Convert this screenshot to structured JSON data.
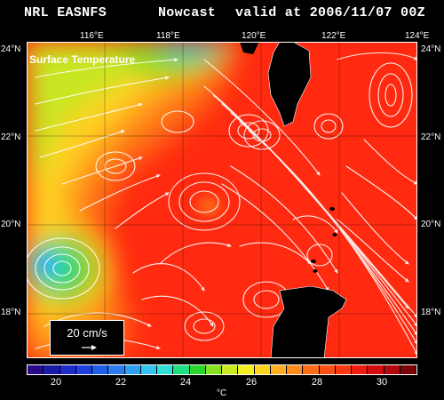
{
  "header": {
    "left": "NRL EASNFS",
    "center": "Nowcast",
    "right": "valid at 2006/11/07 00Z"
  },
  "map": {
    "field_label": "Surface Temperature",
    "lon_ticks": [
      "116°E",
      "118°E",
      "120°E",
      "122°E",
      "124°E"
    ],
    "lat_ticks_left": [
      "24°N",
      "22°N",
      "20°N",
      "18°N"
    ],
    "lat_ticks_right": [
      "24°N",
      "22°N",
      "20°N",
      "18°N"
    ],
    "land_color": "#000000",
    "vector_color": "#ffffff"
  },
  "scale": {
    "label": "20 cm/s"
  },
  "colorbar": {
    "colors": [
      "#2a0a8a",
      "#1a1aa8",
      "#1e2dc8",
      "#2040dc",
      "#1f5ee8",
      "#2a7cf0",
      "#2ea0f4",
      "#34c4f0",
      "#2ee0d8",
      "#1ee080",
      "#2ad42c",
      "#86e020",
      "#c8ec20",
      "#f4f020",
      "#ffd420",
      "#ffb020",
      "#ff8c1c",
      "#ff6c18",
      "#ff5014",
      "#ff3810",
      "#f01c10",
      "#d40c10",
      "#b0080c",
      "#7a0408"
    ],
    "labels": [
      "20",
      "22",
      "24",
      "26",
      "28",
      "30"
    ],
    "units": "°C"
  }
}
